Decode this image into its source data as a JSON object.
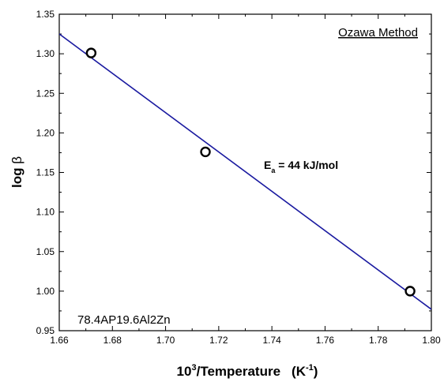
{
  "chart_data": {
    "type": "scatter",
    "title": "",
    "xlabel": {
      "base": "10",
      "base_sup": "3",
      "main": "/Temperature",
      "unit_open": "(K",
      "unit_sup": "-1",
      "unit_close": ")"
    },
    "ylabel": {
      "main": "log ",
      "symbol": "β"
    },
    "xlim": [
      1.66,
      1.8
    ],
    "ylim": [
      0.95,
      1.35
    ],
    "x_ticks": [
      "1.66",
      "1.68",
      "1.70",
      "1.72",
      "1.74",
      "1.76",
      "1.78",
      "1.80"
    ],
    "y_ticks": [
      "0.95",
      "1.00",
      "1.05",
      "1.10",
      "1.15",
      "1.20",
      "1.25",
      "1.30",
      "1.35"
    ],
    "grid": false,
    "series": [
      {
        "x": [
          1.672,
          1.715,
          1.792
        ],
        "y": [
          1.301,
          1.176,
          1.0
        ],
        "marker": "open-circle",
        "color": "#000000"
      }
    ],
    "fit_line": {
      "x": [
        1.66,
        1.8
      ],
      "y": [
        1.325,
        0.977
      ],
      "color": "#1a1aa0"
    },
    "annotations": {
      "method_label": "Ozawa Method",
      "sample_label": "78.4AP19.6Al2Zn",
      "ea_label": {
        "main": "E",
        "sub": "a",
        "rest": " = 44 kJ/mol"
      }
    }
  }
}
